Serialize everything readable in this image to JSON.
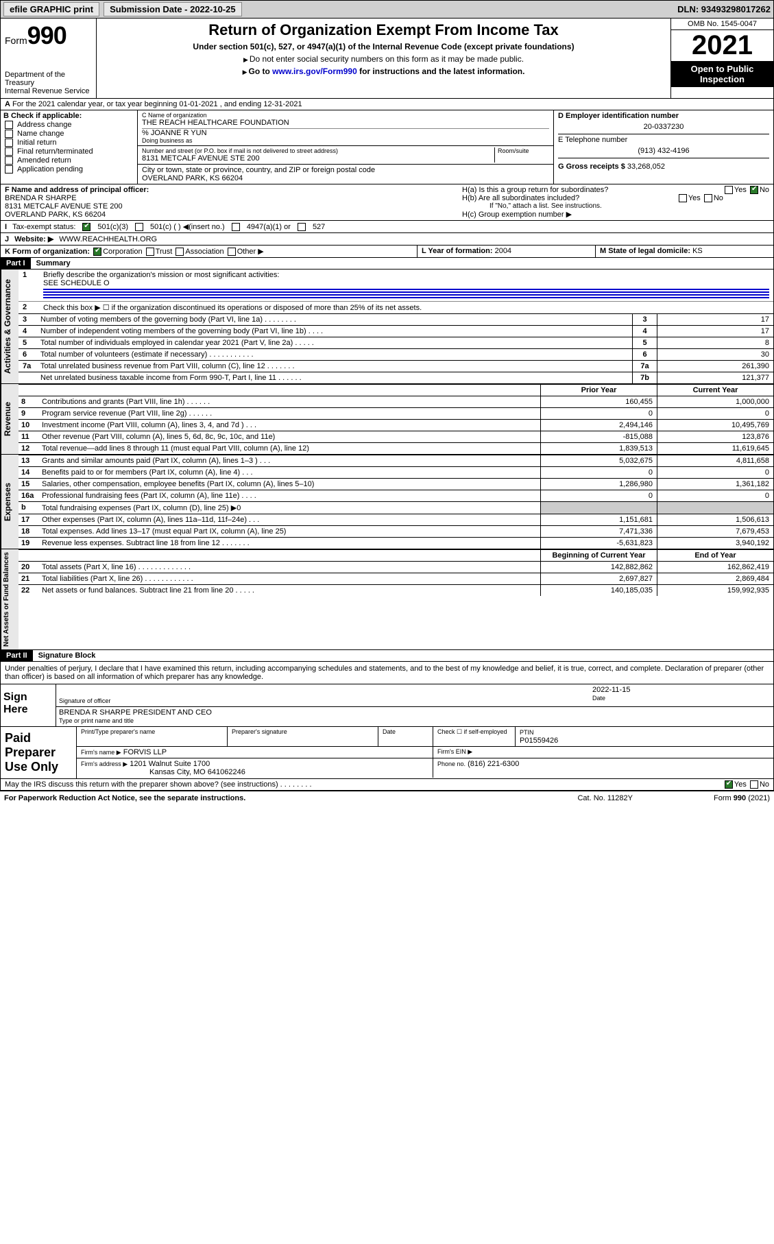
{
  "topbar": {
    "efile": "efile GRAPHIC print",
    "submission": "Submission Date - 2022-10-25",
    "dln": "DLN: 93493298017262"
  },
  "header": {
    "form_label": "Form",
    "form_no": "990",
    "dept": "Department of the Treasury\nInternal Revenue Service",
    "title": "Return of Organization Exempt From Income Tax",
    "sub": "Under section 501(c), 527, or 4947(a)(1) of the Internal Revenue Code (except private foundations)",
    "note1": "Do not enter social security numbers on this form as it may be made public.",
    "note2_a": "Go to ",
    "note2_link": "www.irs.gov/Form990",
    "note2_b": " for instructions and the latest information.",
    "omb": "OMB No. 1545-0047",
    "year": "2021",
    "open": "Open to Public Inspection"
  },
  "row_a": "For the 2021 calendar year, or tax year beginning 01-01-2021   , and ending 12-31-2021",
  "b": {
    "label": "B Check if applicable:",
    "items": [
      "Address change",
      "Name change",
      "Initial return",
      "Final return/terminated",
      "Amended return",
      "Application pending"
    ]
  },
  "c": {
    "name_lab": "C Name of organization",
    "name": "THE REACH HEALTHCARE FOUNDATION",
    "care": "% JOANNE R YUN",
    "dba_lab": "Doing business as",
    "addr_lab": "Number and street (or P.O. box if mail is not delivered to street address)",
    "room_lab": "Room/suite",
    "addr": "8131 METCALF AVENUE STE 200",
    "city_lab": "City or town, state or province, country, and ZIP or foreign postal code",
    "city": "OVERLAND PARK, KS  66204"
  },
  "d": {
    "lab": "D Employer identification number",
    "val": "20-0337230"
  },
  "e": {
    "lab": "E Telephone number",
    "val": "(913) 432-4196"
  },
  "g": {
    "lab": "G Gross receipts $",
    "val": "33,268,052"
  },
  "f": {
    "lab": "F Name and address of principal officer:",
    "name": "BRENDA R SHARPE",
    "addr1": "8131 METCALF AVENUE STE 200",
    "addr2": "OVERLAND PARK, KS  66204"
  },
  "h": {
    "a": "H(a)  Is this a group return for subordinates?",
    "b": "H(b)  Are all subordinates included?",
    "bnote": "If \"No,\" attach a list. See instructions.",
    "c": "H(c)  Group exemption number ▶",
    "yes": "Yes",
    "no": "No"
  },
  "i": {
    "lab": "Tax-exempt status:",
    "opts": [
      "501(c)(3)",
      "501(c) (  ) ◀(insert no.)",
      "4947(a)(1) or",
      "527"
    ]
  },
  "j": {
    "lab": "Website: ▶",
    "val": "WWW.REACHHEALTH.ORG"
  },
  "k": {
    "lab": "K Form of organization:",
    "opts": [
      "Corporation",
      "Trust",
      "Association",
      "Other ▶"
    ]
  },
  "l": {
    "lab": "L Year of formation:",
    "val": "2004"
  },
  "m": {
    "lab": "M State of legal domicile:",
    "val": "KS"
  },
  "part1": {
    "bar": "Part I",
    "title": "Summary"
  },
  "s1": {
    "q1": "Briefly describe the organization's mission or most significant activities:",
    "q1v": "SEE SCHEDULE O",
    "q2": "Check this box ▶ ☐  if the organization discontinued its operations or disposed of more than 25% of its net assets.",
    "lines": [
      {
        "n": "3",
        "t": "Number of voting members of the governing body (Part VI, line 1a)  .  .  .  .  .  .  .  .",
        "box": "3",
        "v": "17"
      },
      {
        "n": "4",
        "t": "Number of independent voting members of the governing body (Part VI, line 1b)  .  .  .  .",
        "box": "4",
        "v": "17"
      },
      {
        "n": "5",
        "t": "Total number of individuals employed in calendar year 2021 (Part V, line 2a)  .  .  .  .  .",
        "box": "5",
        "v": "8"
      },
      {
        "n": "6",
        "t": "Total number of volunteers (estimate if necessary)  .  .  .  .  .  .  .  .  .  .  .",
        "box": "6",
        "v": "30"
      },
      {
        "n": "7a",
        "t": "Total unrelated business revenue from Part VIII, column (C), line 12  .  .  .  .  .  .  .",
        "box": "7a",
        "v": "261,390"
      },
      {
        "n": "",
        "t": "Net unrelated business taxable income from Form 990-T, Part I, line 11  .  .  .  .  .  .",
        "box": "7b",
        "v": "121,377"
      }
    ]
  },
  "cols": {
    "prior": "Prior Year",
    "curr": "Current Year",
    "beg": "Beginning of Current Year",
    "end": "End of Year"
  },
  "revenue": [
    {
      "n": "8",
      "t": "Contributions and grants (Part VIII, line 1h)  .  .  .  .  .  .",
      "p": "160,455",
      "c": "1,000,000"
    },
    {
      "n": "9",
      "t": "Program service revenue (Part VIII, line 2g)  .  .  .  .  .  .",
      "p": "0",
      "c": "0"
    },
    {
      "n": "10",
      "t": "Investment income (Part VIII, column (A), lines 3, 4, and 7d )  .  .  .",
      "p": "2,494,146",
      "c": "10,495,769"
    },
    {
      "n": "11",
      "t": "Other revenue (Part VIII, column (A), lines 5, 6d, 8c, 9c, 10c, and 11e)",
      "p": "-815,088",
      "c": "123,876"
    },
    {
      "n": "12",
      "t": "Total revenue—add lines 8 through 11 (must equal Part VIII, column (A), line 12)",
      "p": "1,839,513",
      "c": "11,619,645"
    }
  ],
  "expenses": [
    {
      "n": "13",
      "t": "Grants and similar amounts paid (Part IX, column (A), lines 1–3 )  .  .  .",
      "p": "5,032,675",
      "c": "4,811,658"
    },
    {
      "n": "14",
      "t": "Benefits paid to or for members (Part IX, column (A), line 4)  .  .  .",
      "p": "0",
      "c": "0"
    },
    {
      "n": "15",
      "t": "Salaries, other compensation, employee benefits (Part IX, column (A), lines 5–10)",
      "p": "1,286,980",
      "c": "1,361,182"
    },
    {
      "n": "16a",
      "t": "Professional fundraising fees (Part IX, column (A), line 11e)  .  .  .  .",
      "p": "0",
      "c": "0"
    },
    {
      "n": "b",
      "t": "Total fundraising expenses (Part IX, column (D), line 25) ▶0",
      "p": "",
      "c": "",
      "shade": true
    },
    {
      "n": "17",
      "t": "Other expenses (Part IX, column (A), lines 11a–11d, 11f–24e)  .  .  .",
      "p": "1,151,681",
      "c": "1,506,613"
    },
    {
      "n": "18",
      "t": "Total expenses. Add lines 13–17 (must equal Part IX, column (A), line 25)",
      "p": "7,471,336",
      "c": "7,679,453"
    },
    {
      "n": "19",
      "t": "Revenue less expenses. Subtract line 18 from line 12  .  .  .  .  .  .  .",
      "p": "-5,631,823",
      "c": "3,940,192"
    }
  ],
  "netassets": [
    {
      "n": "20",
      "t": "Total assets (Part X, line 16)  .  .  .  .  .  .  .  .  .  .  .  .  .",
      "p": "142,882,862",
      "c": "162,862,419"
    },
    {
      "n": "21",
      "t": "Total liabilities (Part X, line 26)  .  .  .  .  .  .  .  .  .  .  .  .",
      "p": "2,697,827",
      "c": "2,869,484"
    },
    {
      "n": "22",
      "t": "Net assets or fund balances. Subtract line 21 from line 20  .  .  .  .  .",
      "p": "140,185,035",
      "c": "159,992,935"
    }
  ],
  "vtabs": {
    "ag": "Activities & Governance",
    "rev": "Revenue",
    "exp": "Expenses",
    "na": "Net Assets or\nFund Balances"
  },
  "part2": {
    "bar": "Part II",
    "title": "Signature Block"
  },
  "sig": {
    "decl": "Under penalties of perjury, I declare that I have examined this return, including accompanying schedules and statements, and to the best of my knowledge and belief, it is true, correct, and complete. Declaration of preparer (other than officer) is based on all information of which preparer has any knowledge.",
    "here": "Sign Here",
    "sig_lab": "Signature of officer",
    "date": "2022-11-15",
    "date_lab": "Date",
    "name": "BRENDA R SHARPE  PRESIDENT AND CEO",
    "name_lab": "Type or print name and title"
  },
  "paid": {
    "lab": "Paid Preparer Use Only",
    "h": [
      "Print/Type preparer's name",
      "Preparer's signature",
      "Date"
    ],
    "chk": "Check ☐ if self-employed",
    "ptin_lab": "PTIN",
    "ptin": "P01559426",
    "firm_lab": "Firm's name   ▶",
    "firm": "FORVIS LLP",
    "ein_lab": "Firm's EIN ▶",
    "addr_lab": "Firm's address ▶",
    "addr": "1201 Walnut Suite 1700",
    "addr2": "Kansas City, MO  641062246",
    "phone_lab": "Phone no.",
    "phone": "(816) 221-6300"
  },
  "may": {
    "q": "May the IRS discuss this return with the preparer shown above? (see instructions)  .  .  .  .  .  .  .  .",
    "yes": "Yes",
    "no": "No"
  },
  "footer": {
    "l": "For Paperwork Reduction Act Notice, see the separate instructions.",
    "m": "Cat. No. 11282Y",
    "r": "Form 990 (2021)"
  }
}
